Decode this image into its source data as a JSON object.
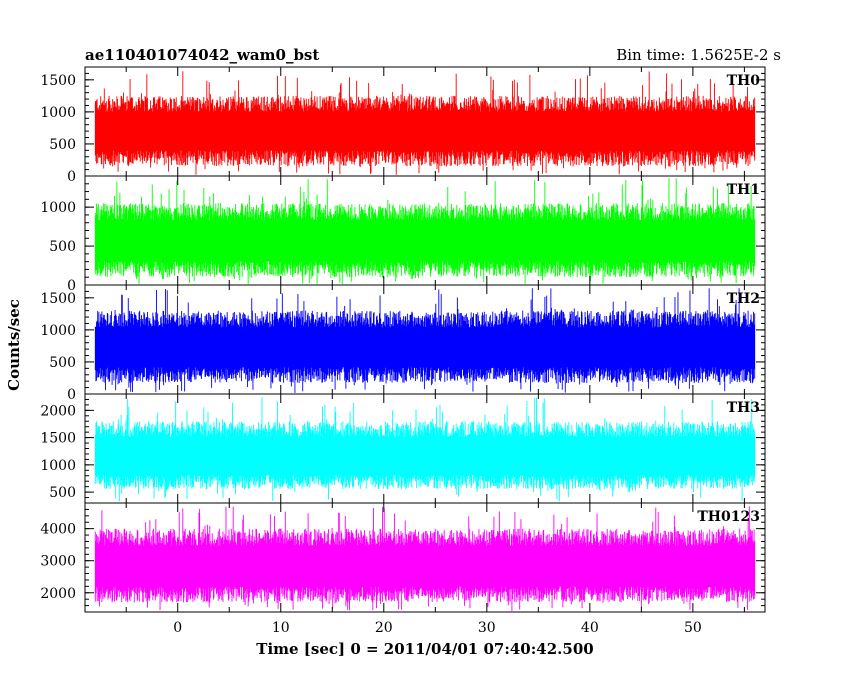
{
  "header": {
    "left_title": "ae110401074042_wam0_bst",
    "right_title": "Bin time: 1.5625E-2 s"
  },
  "chart_data": {
    "type": "line",
    "title": "ae110401074042_wam0_bst",
    "subtitle": "Bin time: 1.5625E-2 s",
    "xlabel": "Time [sec] 0 = 2011/04/01 07:40:42.500",
    "ylabel": "Counts/sec",
    "xlim": [
      -9,
      57
    ],
    "x_range_data": [
      -8,
      56
    ],
    "xticks": [
      0,
      10,
      20,
      30,
      40,
      50
    ],
    "grid": false,
    "series": [
      {
        "name": "TH0",
        "color": "#ff0000",
        "ylim": [
          0,
          1700
        ],
        "yticks": [
          0,
          500,
          1000,
          1500
        ],
        "mean": 700,
        "low": 150,
        "high": 1250,
        "spike_max": 1650
      },
      {
        "name": "TH1",
        "color": "#00ff00",
        "ylim": [
          0,
          1400
        ],
        "yticks": [
          0,
          500,
          1000
        ],
        "mean": 560,
        "low": 100,
        "high": 1050,
        "spike_max": 1380
      },
      {
        "name": "TH2",
        "color": "#0000ff",
        "ylim": [
          0,
          1700
        ],
        "yticks": [
          0,
          500,
          1000,
          1500
        ],
        "mean": 720,
        "low": 170,
        "high": 1300,
        "spike_max": 1650
      },
      {
        "name": "TH3",
        "color": "#00ffff",
        "ylim": [
          300,
          2300
        ],
        "yticks": [
          500,
          1000,
          1500,
          2000
        ],
        "mean": 1150,
        "low": 550,
        "high": 1800,
        "spike_max": 2250
      },
      {
        "name": "TH0123",
        "color": "#ff00ff",
        "ylim": [
          1400,
          4800
        ],
        "yticks": [
          2000,
          3000,
          4000
        ],
        "mean": 2800,
        "low": 1700,
        "high": 4000,
        "spike_max": 4700
      }
    ]
  }
}
